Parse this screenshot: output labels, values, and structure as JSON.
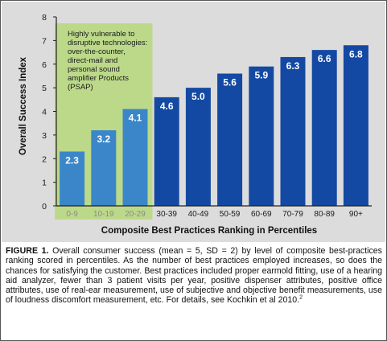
{
  "chart_data": {
    "type": "bar",
    "title": "",
    "xlabel": "Composite Best Practices Ranking in Percentiles",
    "ylabel": "Overall Success Index",
    "ylim": [
      0,
      8
    ],
    "yticks": [
      "0",
      "1",
      "2",
      "3",
      "4",
      "5",
      "6",
      "7",
      "8"
    ],
    "grid": false,
    "categories": [
      "0-9",
      "10-19",
      "20-29",
      "30-39",
      "40-49",
      "50-59",
      "60-69",
      "70-79",
      "80-89",
      "90+"
    ],
    "values": [
      2.3,
      3.2,
      4.1,
      4.6,
      5.0,
      5.6,
      5.9,
      6.3,
      6.6,
      6.8
    ],
    "value_labels": [
      "2.3",
      "3.2",
      "4.1",
      "4.6",
      "5.0",
      "5.6",
      "5.9",
      "6.3",
      "6.6",
      "6.8"
    ],
    "highlighted_categories": [
      "0-9",
      "10-19",
      "20-29"
    ],
    "colors": {
      "bar_highlighted": "#3a86c8",
      "bar": "#1449a3",
      "highlight_box": "#bcd98a",
      "highlight_tick_label": "#8a8a8a",
      "axis": "#222222",
      "panel_background": "#dcdcdc"
    },
    "annotation": "Highly vulnerable to disruptive technologies: over-the-counter, direct-mail and personal sound amplifier Products (PSAP)"
  },
  "caption": {
    "label": "FIGURE 1.",
    "text": "Overall consumer success (mean = 5, SD = 2) by level of composite best-practices ranking scored in percentiles. As the number of best practices employed increases, so does the chances for satisfying the customer. Best practices included proper earmold fitting, use of a hearing aid analyzer, fewer than 3 patient visits per year, positive dispenser attributes, positive office attributes, use of real-ear measurement, use of subjective and objective benefit measurements, use of loudness discomfort measurement, etc. For details, see Kochkin et al 2010.",
    "reference_mark": "2"
  }
}
